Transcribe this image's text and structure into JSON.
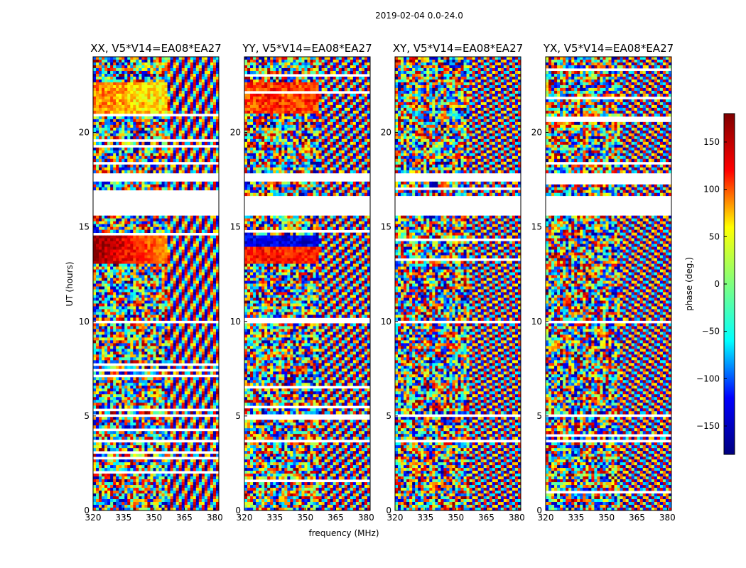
{
  "figure": {
    "suptitle": "2019-02-04 0.0-24.0"
  },
  "chart_data": {
    "type": "heatmap",
    "title": "2019-02-04 0.0-24.0",
    "xlabel": "frequency (MHz)",
    "ylabel": "UT (hours)",
    "xlim": [
      320,
      382
    ],
    "ylim": [
      0,
      24
    ],
    "x_ticks": [
      320,
      335,
      350,
      365,
      380
    ],
    "x_tick_labels": [
      "320",
      "335",
      "350",
      "365",
      "380"
    ],
    "y_ticks": [
      0,
      5,
      10,
      15,
      20
    ],
    "y_tick_labels": [
      "0",
      "5",
      "10",
      "15",
      "20"
    ],
    "panels": [
      {
        "name": "xx",
        "title": "XX, V5*V14=EA08*EA27"
      },
      {
        "name": "yy",
        "title": "YY, V5*V14=EA08*EA27"
      },
      {
        "name": "xy",
        "title": "XY, V5*V14=EA08*EA27"
      },
      {
        "name": "yx",
        "title": "YX, V5*V14=EA08*EA27"
      }
    ],
    "data_gaps_ut": [
      [
        15.6,
        16.7
      ],
      [
        17.35,
        17.85
      ],
      [
        3.55,
        3.75
      ],
      [
        4.95,
        5.05
      ],
      [
        9.95,
        10.05
      ],
      [
        11.55,
        11.62
      ]
    ],
    "colorbar": {
      "label": "phase (deg.)",
      "range": [
        -180,
        180
      ],
      "ticks": [
        150,
        100,
        50,
        0,
        -50,
        -100,
        -150
      ],
      "tick_labels": [
        "150",
        "100",
        "50",
        "0",
        "−50",
        "−100",
        "−150"
      ],
      "colormap": "jet",
      "stops": [
        "#00007f",
        "#0000ff",
        "#00ffff",
        "#7fff7f",
        "#ffff00",
        "#ff0000",
        "#7f0000"
      ]
    }
  }
}
